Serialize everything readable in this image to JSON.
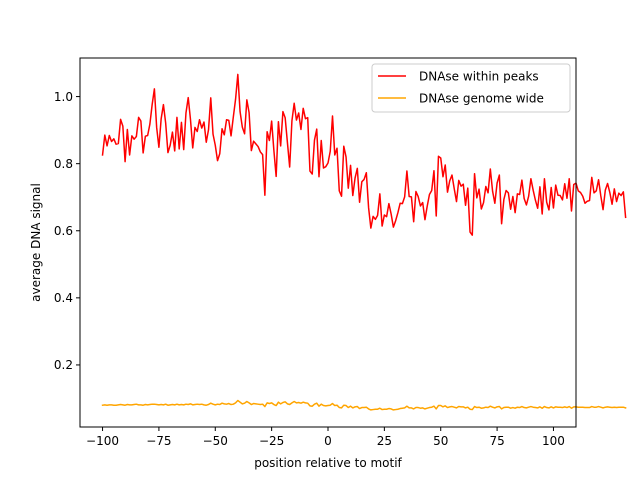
{
  "chart_data": {
    "type": "line",
    "title": "",
    "xlabel": "position relative to motif",
    "ylabel": "average DNA signal",
    "xlim": [
      -110,
      110
    ],
    "ylim": [
      0.015,
      1.115
    ],
    "xticks": [
      -100,
      -75,
      -50,
      -25,
      0,
      25,
      50,
      75,
      100
    ],
    "xtick_labels": [
      "−100",
      "−75",
      "−50",
      "−25",
      "0",
      "25",
      "50",
      "75",
      "100"
    ],
    "yticks": [
      0.2,
      0.4,
      0.6,
      0.8,
      1.0
    ],
    "ytick_labels": [
      "0.2",
      "0.4",
      "0.6",
      "0.8",
      "1.0"
    ],
    "grid": false,
    "legend_position": "upper-right",
    "x_start": -100,
    "x_step": 1,
    "series": [
      {
        "name": "DNAse within peaks",
        "color": "#ff0000",
        "values": [
          0.826,
          0.885,
          0.853,
          0.884,
          0.866,
          0.874,
          0.858,
          0.86,
          0.932,
          0.912,
          0.806,
          0.902,
          0.826,
          0.883,
          0.873,
          0.881,
          0.938,
          0.927,
          0.832,
          0.882,
          0.884,
          0.918,
          0.976,
          1.023,
          0.908,
          0.849,
          0.934,
          0.976,
          0.921,
          0.833,
          0.855,
          0.894,
          0.838,
          0.938,
          0.844,
          0.923,
          0.842,
          0.951,
          0.997,
          0.932,
          0.847,
          0.908,
          0.896,
          0.931,
          0.906,
          0.924,
          0.864,
          0.901,
          0.996,
          0.888,
          0.855,
          0.809,
          0.83,
          0.904,
          0.886,
          0.931,
          0.929,
          0.883,
          0.939,
          0.992,
          1.066,
          0.955,
          0.909,
          0.889,
          0.99,
          0.952,
          0.839,
          0.867,
          0.859,
          0.851,
          0.835,
          0.827,
          0.706,
          0.895,
          0.869,
          0.927,
          0.839,
          0.762,
          0.925,
          0.853,
          0.955,
          0.937,
          0.863,
          0.79,
          0.928,
          0.98,
          0.93,
          0.951,
          0.902,
          0.965,
          0.934,
          0.937,
          0.778,
          0.769,
          0.87,
          0.903,
          0.761,
          0.869,
          0.787,
          0.791,
          0.802,
          0.837,
          0.942,
          0.826,
          0.846,
          0.719,
          0.703,
          0.852,
          0.82,
          0.727,
          0.795,
          0.705,
          0.757,
          0.786,
          0.685,
          0.746,
          0.753,
          0.773,
          0.669,
          0.608,
          0.643,
          0.634,
          0.646,
          0.71,
          0.614,
          0.647,
          0.642,
          0.681,
          0.65,
          0.611,
          0.63,
          0.654,
          0.682,
          0.681,
          0.701,
          0.778,
          0.702,
          0.701,
          0.627,
          0.717,
          0.702,
          0.674,
          0.684,
          0.633,
          0.673,
          0.708,
          0.72,
          0.779,
          0.644,
          0.822,
          0.817,
          0.761,
          0.796,
          0.715,
          0.749,
          0.766,
          0.725,
          0.687,
          0.75,
          0.733,
          0.739,
          0.676,
          0.727,
          0.596,
          0.587,
          0.77,
          0.698,
          0.724,
          0.665,
          0.684,
          0.732,
          0.713,
          0.784,
          0.718,
          0.682,
          0.742,
          0.766,
          0.621,
          0.693,
          0.72,
          0.713,
          0.664,
          0.702,
          0.654,
          0.71,
          0.708,
          0.751,
          0.696,
          0.677,
          0.703,
          0.755,
          0.721,
          0.691,
          0.667,
          0.731,
          0.65,
          0.755,
          0.685,
          0.662,
          0.729,
          0.668,
          0.736,
          0.706,
          0.705,
          0.692,
          0.74,
          0.697,
          0.755,
          0.659,
          0.738,
          0.742,
          0.719,
          0.714,
          0.703,
          0.682,
          0.688,
          0.69,
          0.759,
          0.713,
          0.719,
          0.752,
          0.704,
          0.663,
          0.721,
          0.741,
          0.714,
          0.679,
          0.725,
          0.687,
          0.712,
          0.705,
          0.716,
          0.64
        ]
      },
      {
        "name": "DNAse genome wide",
        "color": "#ffa500",
        "values": [
          0.08,
          0.081,
          0.08,
          0.081,
          0.081,
          0.08,
          0.08,
          0.081,
          0.082,
          0.081,
          0.08,
          0.082,
          0.081,
          0.081,
          0.082,
          0.083,
          0.081,
          0.081,
          0.08,
          0.082,
          0.081,
          0.082,
          0.083,
          0.083,
          0.082,
          0.081,
          0.082,
          0.081,
          0.083,
          0.08,
          0.081,
          0.082,
          0.081,
          0.083,
          0.081,
          0.082,
          0.081,
          0.083,
          0.082,
          0.084,
          0.081,
          0.082,
          0.083,
          0.082,
          0.083,
          0.081,
          0.08,
          0.082,
          0.086,
          0.083,
          0.081,
          0.083,
          0.082,
          0.086,
          0.084,
          0.083,
          0.085,
          0.082,
          0.083,
          0.087,
          0.094,
          0.089,
          0.084,
          0.086,
          0.091,
          0.087,
          0.082,
          0.085,
          0.084,
          0.083,
          0.082,
          0.083,
          0.076,
          0.087,
          0.085,
          0.087,
          0.082,
          0.079,
          0.089,
          0.084,
          0.088,
          0.09,
          0.084,
          0.082,
          0.087,
          0.091,
          0.087,
          0.088,
          0.086,
          0.089,
          0.087,
          0.086,
          0.078,
          0.077,
          0.083,
          0.086,
          0.077,
          0.083,
          0.079,
          0.078,
          0.079,
          0.08,
          0.085,
          0.079,
          0.08,
          0.073,
          0.072,
          0.08,
          0.079,
          0.073,
          0.077,
          0.072,
          0.075,
          0.076,
          0.07,
          0.073,
          0.073,
          0.074,
          0.069,
          0.066,
          0.067,
          0.068,
          0.068,
          0.071,
          0.067,
          0.068,
          0.068,
          0.07,
          0.069,
          0.066,
          0.067,
          0.068,
          0.07,
          0.071,
          0.072,
          0.077,
          0.072,
          0.072,
          0.069,
          0.073,
          0.073,
          0.071,
          0.072,
          0.069,
          0.071,
          0.073,
          0.074,
          0.077,
          0.069,
          0.079,
          0.079,
          0.075,
          0.078,
          0.073,
          0.075,
          0.076,
          0.074,
          0.072,
          0.076,
          0.075,
          0.075,
          0.072,
          0.074,
          0.068,
          0.067,
          0.076,
          0.073,
          0.074,
          0.071,
          0.072,
          0.074,
          0.073,
          0.077,
          0.074,
          0.072,
          0.075,
          0.076,
          0.069,
          0.073,
          0.074,
          0.074,
          0.071,
          0.073,
          0.071,
          0.074,
          0.073,
          0.076,
          0.073,
          0.072,
          0.074,
          0.076,
          0.074,
          0.073,
          0.072,
          0.075,
          0.071,
          0.076,
          0.073,
          0.072,
          0.075,
          0.072,
          0.075,
          0.074,
          0.074,
          0.073,
          0.075,
          0.073,
          0.076,
          0.071,
          0.075,
          0.075,
          0.074,
          0.074,
          0.074,
          0.073,
          0.073,
          0.073,
          0.076,
          0.074,
          0.074,
          0.076,
          0.074,
          0.072,
          0.074,
          0.075,
          0.074,
          0.073,
          0.074,
          0.073,
          0.074,
          0.074,
          0.074,
          0.072
        ]
      }
    ]
  }
}
